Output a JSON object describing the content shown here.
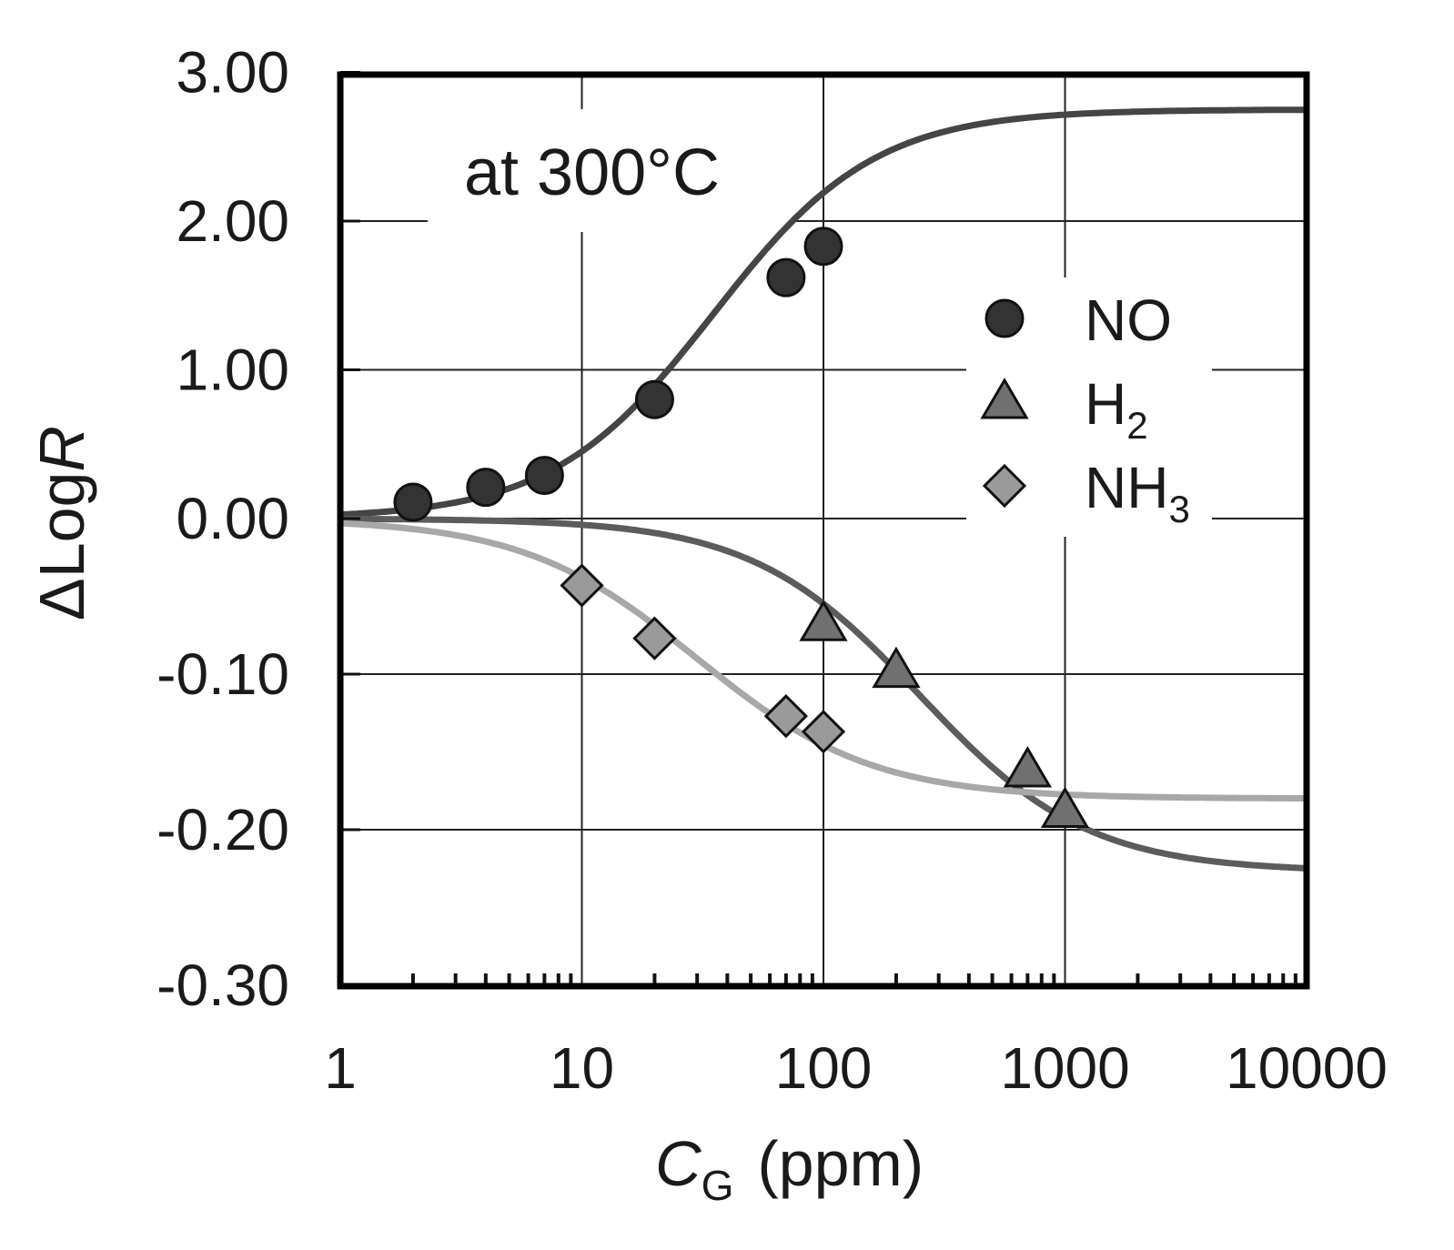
{
  "chart_data": {
    "type": "scatter",
    "annotation": "at 300°C",
    "xlabel": {
      "main": "C",
      "sub": "G",
      "unit": "(ppm)"
    },
    "ylabel": {
      "prefix": "ΔLog",
      "italic": "R"
    },
    "xscale": "log",
    "xlim": [
      1,
      10000
    ],
    "x_ticks": [
      {
        "value": 1,
        "label": "1"
      },
      {
        "value": 10,
        "label": "10"
      },
      {
        "value": 100,
        "label": "100"
      },
      {
        "value": 1000,
        "label": "1000"
      },
      {
        "value": 10000,
        "label": "10000"
      }
    ],
    "y_axis_note": "split axis: upper part 0.00 to 3.00, lower part 0.00 to -0.30",
    "y_ticks": [
      {
        "value": 3.0,
        "label": "3.00"
      },
      {
        "value": 2.0,
        "label": "2.00"
      },
      {
        "value": 1.0,
        "label": "1.00"
      },
      {
        "value": 0.0,
        "label": "0.00"
      },
      {
        "value": -0.1,
        "label": "-0.10"
      },
      {
        "value": -0.2,
        "label": "-0.20"
      },
      {
        "value": -0.3,
        "label": "-0.30"
      }
    ],
    "grid": true,
    "legend_position": "right, upper-middle",
    "series": [
      {
        "name": "NO",
        "label": "NO",
        "label_sub": "",
        "marker": "circle",
        "color": "#333333",
        "line_color": "#454545",
        "points": [
          {
            "x": 2,
            "y": 0.11
          },
          {
            "x": 4,
            "y": 0.21
          },
          {
            "x": 7,
            "y": 0.29
          },
          {
            "x": 20,
            "y": 0.8
          },
          {
            "x": 70,
            "y": 1.62
          },
          {
            "x": 100,
            "y": 1.83
          }
        ],
        "fit": {
          "bottom": 0.0,
          "top": 2.75,
          "ec50": 35,
          "hill": 1.3
        }
      },
      {
        "name": "H2",
        "label": "H",
        "label_sub": "2",
        "marker": "triangle",
        "color": "#707070",
        "line_color": "#5c5c5c",
        "points": [
          {
            "x": 100,
            "y": -0.068
          },
          {
            "x": 200,
            "y": -0.098
          },
          {
            "x": 700,
            "y": -0.162
          },
          {
            "x": 1000,
            "y": -0.188
          }
        ],
        "fit": {
          "bottom": 0.0,
          "top": -0.227,
          "ec50": 250,
          "hill": 1.25
        }
      },
      {
        "name": "NH3",
        "label": "NH",
        "label_sub": "3",
        "marker": "diamond",
        "color": "#9a9a9a",
        "line_color": "#a8a8a8",
        "points": [
          {
            "x": 10,
            "y": -0.043
          },
          {
            "x": 20,
            "y": -0.077
          },
          {
            "x": 70,
            "y": -0.127
          },
          {
            "x": 100,
            "y": -0.137
          }
        ],
        "fit": {
          "bottom": 0.0,
          "top": -0.18,
          "ec50": 30,
          "hill": 1.2
        }
      }
    ]
  }
}
